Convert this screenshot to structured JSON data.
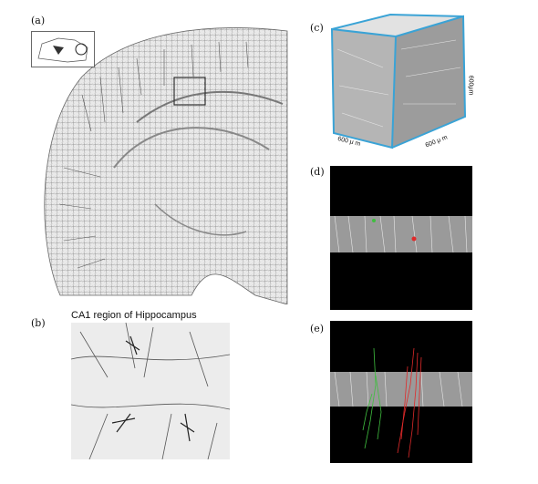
{
  "panels": {
    "a": {
      "label": "(a)"
    },
    "b": {
      "label": "(b)",
      "caption": "CA1 region of Hippocampus"
    },
    "c": {
      "label": "(c)",
      "dim_x": "600 μ m",
      "dim_z": "600 μ m",
      "dim_y": "600μm"
    },
    "d": {
      "label": "(d)"
    },
    "e": {
      "label": "(e)"
    }
  },
  "colors": {
    "cube_edge": "#3aa3d6",
    "trace_green": "#3fbf3f",
    "trace_red": "#e02a2a"
  }
}
